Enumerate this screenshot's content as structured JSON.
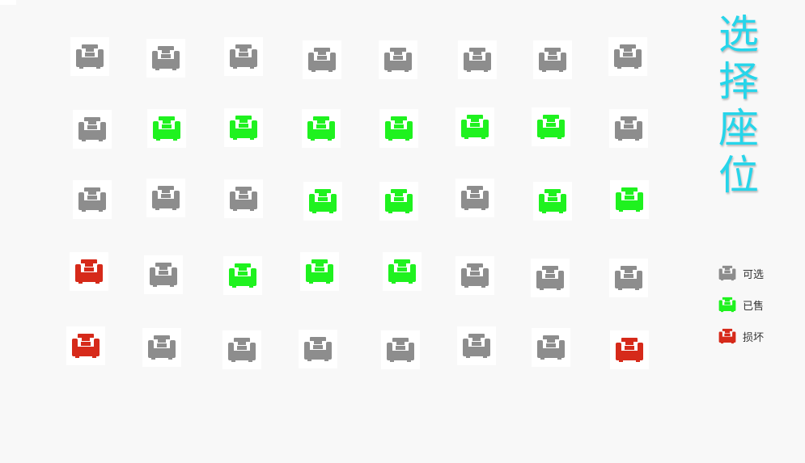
{
  "title": {
    "chars": [
      "选",
      "择",
      "座",
      "位"
    ]
  },
  "colors": {
    "available": "#8d8d8d",
    "sold": "#1ff21f",
    "broken": "#d62a1a",
    "title": "#26d5ea"
  },
  "seat_icon": "armchair-icon",
  "seat_rows": [
    [
      "available",
      "available",
      "available",
      "available",
      "available",
      "available",
      "available",
      "available"
    ],
    [
      "available",
      "sold",
      "sold",
      "sold",
      "sold",
      "sold",
      "sold",
      "available"
    ],
    [
      "available",
      "available",
      "available",
      "sold",
      "sold",
      "available",
      "sold",
      "sold"
    ],
    [
      "broken",
      "available",
      "sold",
      "sold",
      "sold",
      "available",
      "available",
      "available"
    ],
    [
      "broken",
      "available",
      "available",
      "available",
      "available",
      "available",
      "available",
      "broken"
    ]
  ],
  "legend": {
    "items": [
      {
        "status": "available",
        "label": "可选"
      },
      {
        "status": "sold",
        "label": "已售"
      },
      {
        "status": "broken",
        "label": "损坏"
      }
    ]
  }
}
